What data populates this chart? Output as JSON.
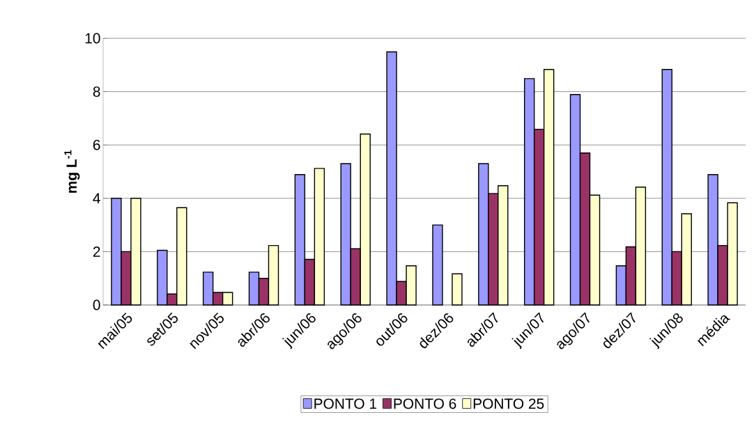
{
  "chart_data": {
    "type": "bar",
    "ylabel": "mg L$^{-1}$",
    "categories": [
      "mai/05",
      "set/05",
      "nov/05",
      "abr/06",
      "jun/06",
      "ago/06",
      "out/06",
      "dez/06",
      "abr/07",
      "jun/07",
      "ago/07",
      "dez/07",
      "jun/08",
      "média"
    ],
    "series": [
      {
        "name": "PONTO 1",
        "color": "#9999ff",
        "values": [
          4.0,
          2.05,
          1.23,
          1.23,
          4.89,
          5.3,
          9.49,
          3.0,
          5.3,
          8.49,
          7.89,
          1.47,
          8.83,
          4.89
        ]
      },
      {
        "name": "PONTO 6",
        "color": "#993366",
        "values": [
          2.0,
          0.41,
          0.47,
          1.0,
          1.71,
          2.11,
          0.88,
          null,
          4.18,
          6.59,
          5.7,
          2.18,
          2.0,
          2.23
        ]
      },
      {
        "name": "PONTO 25",
        "color": "#ffffcc",
        "values": [
          4.0,
          3.65,
          0.47,
          2.23,
          5.12,
          6.41,
          1.47,
          1.17,
          4.47,
          8.83,
          4.12,
          4.42,
          3.42,
          3.83
        ]
      }
    ],
    "ylim": [
      0,
      10
    ],
    "yticks": [
      0,
      2,
      4,
      6,
      8,
      10
    ],
    "grid": "y",
    "legend": "bottom"
  }
}
